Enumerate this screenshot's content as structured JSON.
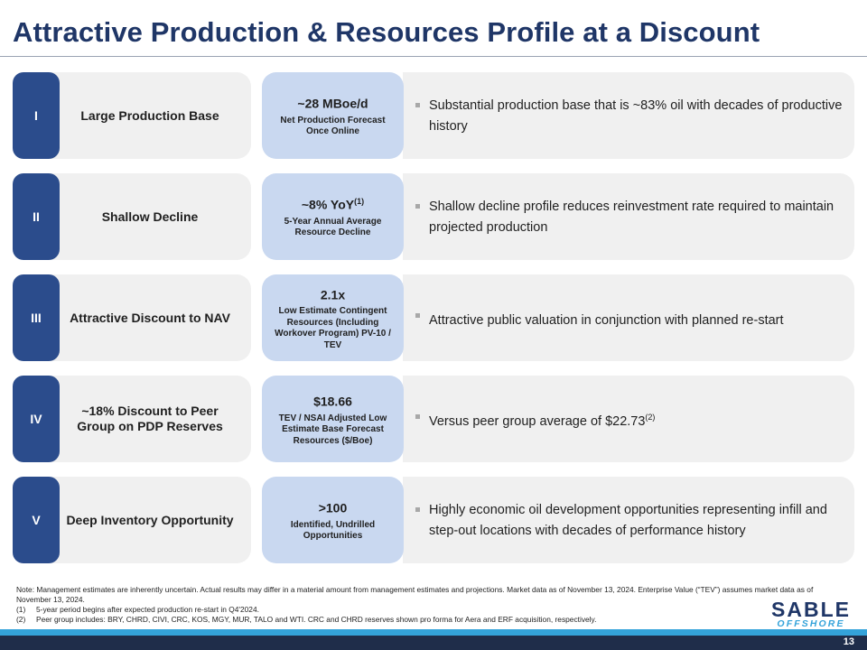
{
  "title": "Attractive Production & Resources Profile at a Discount",
  "rows": [
    {
      "numeral": "I",
      "label": "Large Production Base",
      "metric": "~28 MBoe/d",
      "metric_sup": "",
      "metric_sub": "Net Production Forecast Once Online",
      "bullet": "Substantial production base that is ~83% oil with decades of productive history",
      "bullet_sup": ""
    },
    {
      "numeral": "II",
      "label": "Shallow Decline",
      "metric": "~8% YoY",
      "metric_sup": "(1)",
      "metric_sub": "5-Year Annual Average Resource Decline",
      "bullet": "Shallow decline profile reduces reinvestment rate required to maintain projected production",
      "bullet_sup": ""
    },
    {
      "numeral": "III",
      "label": "Attractive Discount to NAV",
      "metric": "2.1x",
      "metric_sup": "",
      "metric_sub": "Low Estimate Contingent Resources (Including Workover Program) PV-10 / TEV",
      "bullet": "Attractive public valuation in conjunction with planned re-start",
      "bullet_sup": ""
    },
    {
      "numeral": "IV",
      "label": "~18% Discount to Peer\nGroup on PDP Reserves",
      "metric": "$18.66",
      "metric_sup": "",
      "metric_sub": "TEV / NSAI Adjusted Low Estimate Base Forecast Resources ($/Boe)",
      "bullet": "Versus peer group average of $22.73",
      "bullet_sup": "(2)"
    },
    {
      "numeral": "V",
      "label": "Deep Inventory Opportunity",
      "metric": ">100",
      "metric_sup": "",
      "metric_sub": "Identified, Undrilled Opportunities",
      "bullet": "Highly economic oil development opportunities representing infill and step-out locations with decades of performance history",
      "bullet_sup": ""
    }
  ],
  "notes": {
    "main": "Note: Management estimates are inherently uncertain. Actual results may differ in a material amount from management estimates and projections. Market data as of November 13, 2024. Enterprise Value (“TEV”) assumes market data as of November 13, 2024.",
    "refs": [
      {
        "num": "(1)",
        "text": "5-year period begins after expected production re-start in Q4'2024."
      },
      {
        "num": "(2)",
        "text": "Peer group includes: BRY, CHRD, CIVI, CRC, KOS, MGY, MUR, TALO and WTI. CRC and CHRD reserves shown pro forma for Aera and ERF acquisition, respectively."
      }
    ]
  },
  "logo": {
    "top": "SABLE",
    "bottom": "OFFSHORE"
  },
  "page_number": "13",
  "colors": {
    "title": "#1f3667",
    "numeral_tab": "#2b4c8c",
    "metric_card": "#c9d8f0",
    "card_gray": "#f0f0f0",
    "footer_stripe": "#34a3da",
    "footer_bar": "#1f2d4a"
  }
}
